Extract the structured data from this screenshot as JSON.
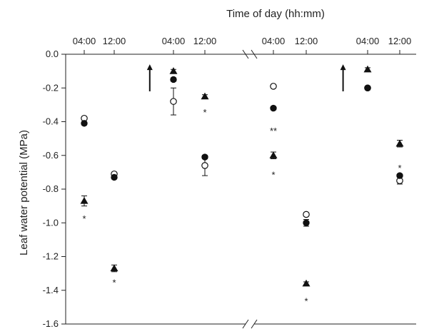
{
  "chart_data": {
    "type": "scatter",
    "title": "",
    "xlabel": "Time of day (hh:mm)",
    "ylabel": "Leaf water potential (MPa)",
    "ylim": [
      -1.6,
      0.0
    ],
    "y_ticks": [
      "0.0",
      "-0.2",
      "-0.4",
      "-0.6",
      "-0.8",
      "-1.0",
      "-1.2",
      "-1.4",
      "-1.6"
    ],
    "x_tick_labels": [
      "04:00",
      "12:00",
      "04:00",
      "12:00",
      "04:00",
      "12:00",
      "04:00",
      "12:00"
    ],
    "axis_break": true,
    "legend": "none",
    "grid": false,
    "series": [
      {
        "marker": "open-circle",
        "points": [
          {
            "slot": 1,
            "y": -0.38,
            "err": 0.01
          },
          {
            "slot": 2,
            "y": -0.71,
            "err": 0.01
          },
          {
            "slot": 3,
            "y": -0.28,
            "err": 0.08
          },
          {
            "slot": 4,
            "y": -0.66,
            "err": 0.06
          },
          {
            "slot": 5,
            "y": -0.19,
            "err": 0.01
          },
          {
            "slot": 6,
            "y": -0.95,
            "err": 0.01
          },
          {
            "slot": 7,
            "y": -0.2,
            "err": 0.01
          },
          {
            "slot": 8,
            "y": -0.75,
            "err": 0.02
          }
        ]
      },
      {
        "marker": "filled-circle",
        "points": [
          {
            "slot": 1,
            "y": -0.41,
            "err": 0.01
          },
          {
            "slot": 2,
            "y": -0.73,
            "err": 0.01
          },
          {
            "slot": 3,
            "y": -0.15,
            "err": 0.01
          },
          {
            "slot": 4,
            "y": -0.61,
            "err": 0.01
          },
          {
            "slot": 5,
            "y": -0.32,
            "err": 0.01
          },
          {
            "slot": 6,
            "y": -1.0,
            "err": 0.02
          },
          {
            "slot": 7,
            "y": -0.2,
            "err": 0.01
          },
          {
            "slot": 8,
            "y": -0.72,
            "err": 0.01
          }
        ]
      },
      {
        "marker": "filled-triangle",
        "points": [
          {
            "slot": 1,
            "y": -0.87,
            "err": 0.03
          },
          {
            "slot": 2,
            "y": -1.27,
            "err": 0.02
          },
          {
            "slot": 3,
            "y": -0.1,
            "err": 0.01
          },
          {
            "slot": 4,
            "y": -0.25,
            "err": 0.01
          },
          {
            "slot": 5,
            "y": -0.6,
            "err": 0.02
          },
          {
            "slot": 6,
            "y": -1.36,
            "err": 0.01
          },
          {
            "slot": 7,
            "y": -0.09,
            "err": 0.01
          },
          {
            "slot": 8,
            "y": -0.53,
            "err": 0.02
          }
        ]
      }
    ],
    "annotations": [
      {
        "slot": 1,
        "y": -0.96,
        "text": "*"
      },
      {
        "slot": 2,
        "y": -1.34,
        "text": "*"
      },
      {
        "slot": 4,
        "y": -0.33,
        "text": "*"
      },
      {
        "slot": 5,
        "y": -0.44,
        "text": "**"
      },
      {
        "slot": 5,
        "y": -0.7,
        "text": "*"
      },
      {
        "slot": 6,
        "y": -1.45,
        "text": "*"
      },
      {
        "slot": 8,
        "y": -0.66,
        "text": "*"
      }
    ],
    "arrows": [
      {
        "slot": 2.6,
        "y_tail": -0.22,
        "y_head": -0.06
      },
      {
        "slot": 6.6,
        "y_tail": -0.22,
        "y_head": -0.06
      }
    ]
  }
}
